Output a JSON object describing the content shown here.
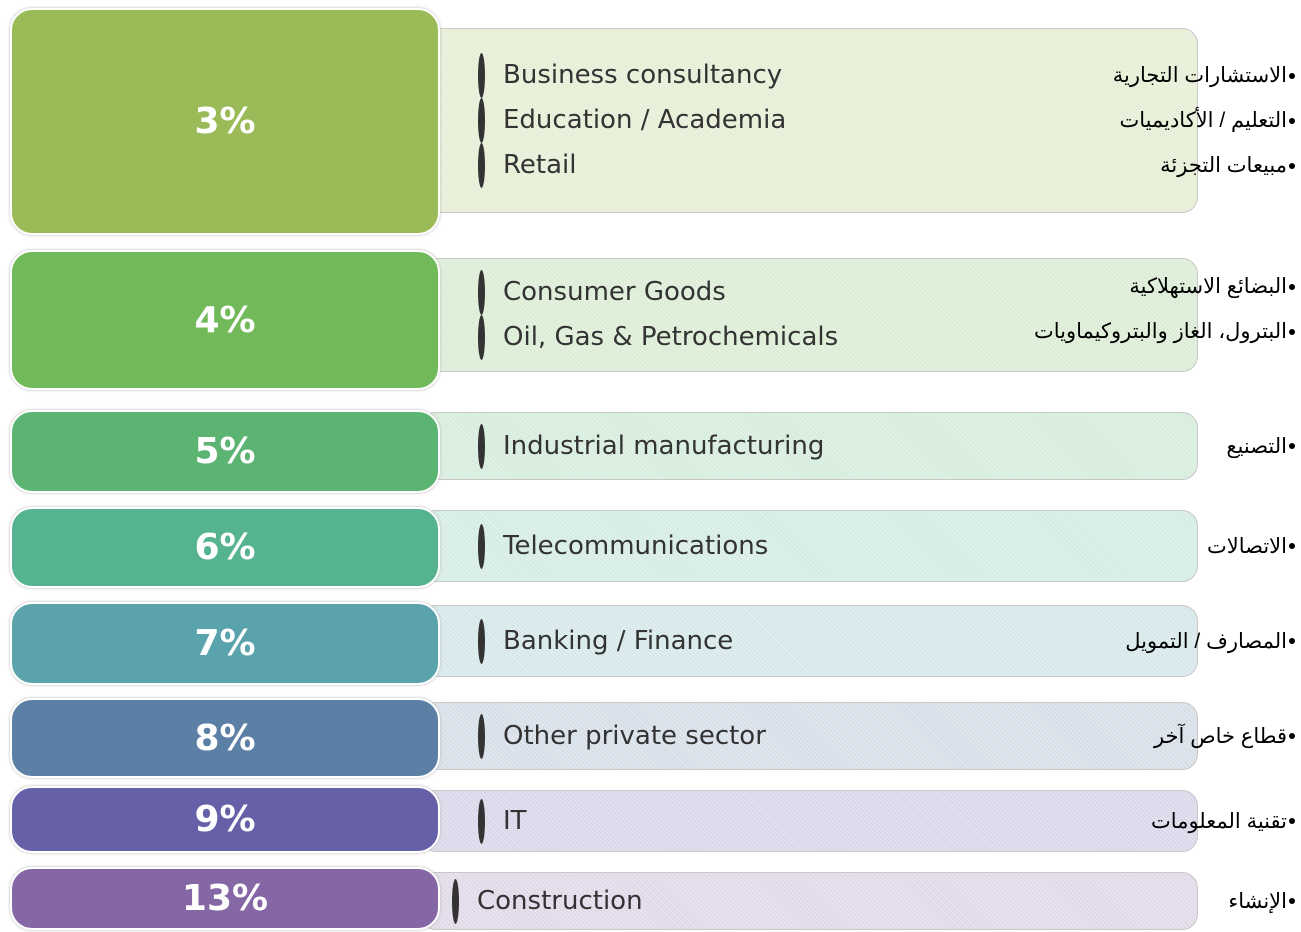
{
  "rows": [
    {
      "percent": "3%",
      "color": "#9bbb59",
      "items": [
        "Business consultancy",
        "Education / Academia",
        "Retail"
      ],
      "items_ar": [
        "الاستشارات التجارية",
        "التعليم / الأكاديميات",
        "مبيعات التجزئة"
      ]
    },
    {
      "percent": "4%",
      "color": "#72b95a",
      "items": [
        "Consumer Goods",
        "Oil, Gas & Petrochemicals"
      ],
      "items_ar": [
        "البضائع الاستهلاكية",
        "البترول، الغاز والبتروكيماويات"
      ]
    },
    {
      "percent": "5%",
      "color": "#5bb472",
      "items": [
        "Industrial manufacturing"
      ],
      "items_ar": [
        "التصنيع"
      ]
    },
    {
      "percent": "6%",
      "color": "#55b38f",
      "items": [
        "Telecommunications"
      ],
      "items_ar": [
        "الاتصالات"
      ]
    },
    {
      "percent": "7%",
      "color": "#5ba3ac",
      "items": [
        "Banking / Finance"
      ],
      "items_ar": [
        "المصارف / التمويل"
      ]
    },
    {
      "percent": "8%",
      "color": "#5c7fa5",
      "items": [
        "Other private sector"
      ],
      "items_ar": [
        "قطاع خاص آخر"
      ]
    },
    {
      "percent": "9%",
      "color": "#6660a8",
      "items": [
        "IT"
      ],
      "items_ar": [
        "تقنية المعلومات"
      ]
    },
    {
      "percent": "13%",
      "color": "#8467a4",
      "items": [
        "Construction"
      ],
      "items_ar": [
        "الإنشاء"
      ]
    }
  ]
}
